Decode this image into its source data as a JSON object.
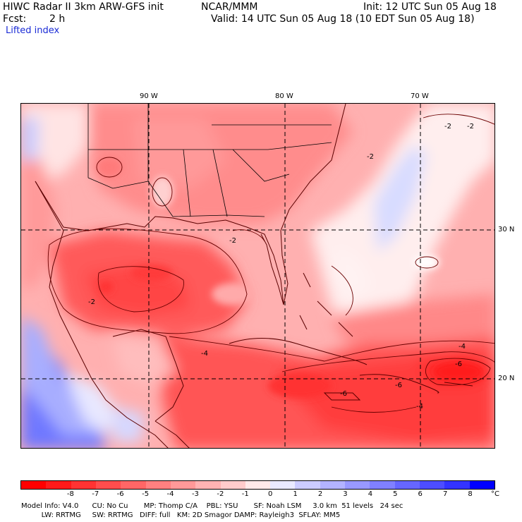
{
  "header": {
    "title": "HIWC Radar II 3km ARW-GFS init",
    "org": "NCAR/MMM",
    "init": "Init: 12 UTC Sun 05 Aug 18",
    "fcst_label": "Fcst:",
    "fcst_value": "2 h",
    "valid": "Valid: 14 UTC Sun 05 Aug 18 (10 EDT Sun 05 Aug 18)",
    "field": "Lifted index"
  },
  "map": {
    "lon_labels": [
      "90 W",
      "80 W",
      "70 W"
    ],
    "lat_labels": [
      "30 N",
      "20 N"
    ],
    "contour_labels": [
      "-2",
      "-2",
      "-2",
      "-2",
      "-4",
      "-4",
      "-6",
      "-6",
      "-6",
      "-4",
      "-2"
    ]
  },
  "colorbar": {
    "unit": "°C",
    "tick_labels": [
      "-8",
      "-7",
      "-6",
      "-5",
      "-4",
      "-3",
      "-2",
      "-1",
      "0",
      "1",
      "2",
      "3",
      "4",
      "5",
      "6",
      "7",
      "8"
    ],
    "colors": [
      "#ff0000",
      "#ff1a1a",
      "#ff3333",
      "#ff4d4d",
      "#ff6666",
      "#ff8080",
      "#ff9999",
      "#ffb3b3",
      "#ffcccc",
      "#ffeaea",
      "#eaeaff",
      "#ccccff",
      "#b3b3ff",
      "#9999ff",
      "#8080ff",
      "#6666ff",
      "#4d4dff",
      "#3333ff",
      "#0000ff"
    ]
  },
  "footer": {
    "line1": "Model Info: V4.0      CU: No Cu       MP: Thomp C/A    PBL: YSU       SF: Noah LSM     3.0 km  51 levels   24 sec",
    "line2": "         LW: RRTMG     SW: RRTMG   DIFF: full   KM: 2D Smagor DAMP: Rayleigh3  SFLAY: MM5"
  }
}
